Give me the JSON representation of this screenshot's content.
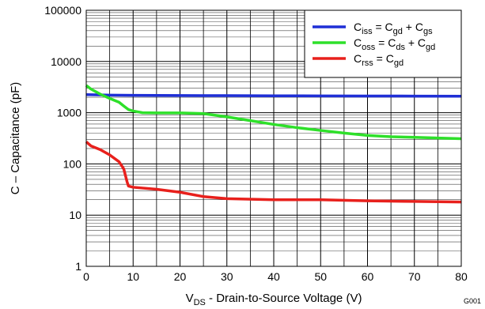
{
  "chart_data": {
    "type": "line",
    "xlabel_main": "V",
    "xlabel_sub": "DS",
    "xlabel_rest": " - Drain-to-Source Voltage (V)",
    "ylabel": "C – Capacitance  (pF)",
    "xlim": [
      0,
      80
    ],
    "ylim": [
      1,
      100000
    ],
    "yscale": "log",
    "x_ticks": [
      0,
      10,
      20,
      30,
      40,
      50,
      60,
      70,
      80
    ],
    "y_ticks": [
      1,
      10,
      100,
      1000,
      10000,
      100000
    ],
    "x_tick_labels": [
      "0",
      "10",
      "20",
      "30",
      "40",
      "50",
      "60",
      "70",
      "80"
    ],
    "y_tick_labels": [
      "1",
      "10",
      "100",
      "1000",
      "10000",
      "100000"
    ],
    "grid": true,
    "legend_position": "top-right",
    "figure_id": "G001",
    "series": [
      {
        "legend": [
          {
            "t": "C",
            "s": false
          },
          {
            "t": "iss",
            "s": true
          },
          {
            "t": " = C",
            "s": false
          },
          {
            "t": "gd",
            "s": true
          },
          {
            "t": " + C",
            "s": false
          },
          {
            "t": "gs",
            "s": true
          }
        ],
        "color": "#1f2fd6",
        "points": [
          [
            0,
            2250
          ],
          [
            5,
            2200
          ],
          [
            10,
            2180
          ],
          [
            20,
            2160
          ],
          [
            30,
            2150
          ],
          [
            40,
            2140
          ],
          [
            50,
            2130
          ],
          [
            60,
            2120
          ],
          [
            70,
            2110
          ],
          [
            80,
            2100
          ]
        ]
      },
      {
        "legend": [
          {
            "t": "C",
            "s": false
          },
          {
            "t": "oss",
            "s": true
          },
          {
            "t": " = C",
            "s": false
          },
          {
            "t": "ds",
            "s": true
          },
          {
            "t": " + C",
            "s": false
          },
          {
            "t": "gd",
            "s": true
          }
        ],
        "color": "#2ee02a",
        "points": [
          [
            0,
            3400
          ],
          [
            1,
            2900
          ],
          [
            3,
            2300
          ],
          [
            5,
            1900
          ],
          [
            7,
            1600
          ],
          [
            8,
            1350
          ],
          [
            9,
            1150
          ],
          [
            10,
            1080
          ],
          [
            12,
            1000
          ],
          [
            15,
            990
          ],
          [
            20,
            990
          ],
          [
            25,
            960
          ],
          [
            30,
            830
          ],
          [
            35,
            700
          ],
          [
            40,
            590
          ],
          [
            45,
            510
          ],
          [
            50,
            450
          ],
          [
            55,
            400
          ],
          [
            60,
            360
          ],
          [
            65,
            340
          ],
          [
            70,
            330
          ],
          [
            75,
            320
          ],
          [
            80,
            310
          ]
        ]
      },
      {
        "legend": [
          {
            "t": "C",
            "s": false
          },
          {
            "t": "rss",
            "s": true
          },
          {
            "t": " =  C",
            "s": false
          },
          {
            "t": "gd",
            "s": true
          }
        ],
        "color": "#e8201c",
        "points": [
          [
            0,
            270
          ],
          [
            1,
            225
          ],
          [
            3,
            190
          ],
          [
            5,
            150
          ],
          [
            7,
            110
          ],
          [
            8,
            80
          ],
          [
            8.7,
            45
          ],
          [
            9,
            37
          ],
          [
            10,
            35
          ],
          [
            15,
            32
          ],
          [
            20,
            28
          ],
          [
            25,
            23
          ],
          [
            30,
            21
          ],
          [
            40,
            20
          ],
          [
            50,
            20
          ],
          [
            60,
            19
          ],
          [
            70,
            18.5
          ],
          [
            80,
            18
          ]
        ]
      }
    ]
  }
}
